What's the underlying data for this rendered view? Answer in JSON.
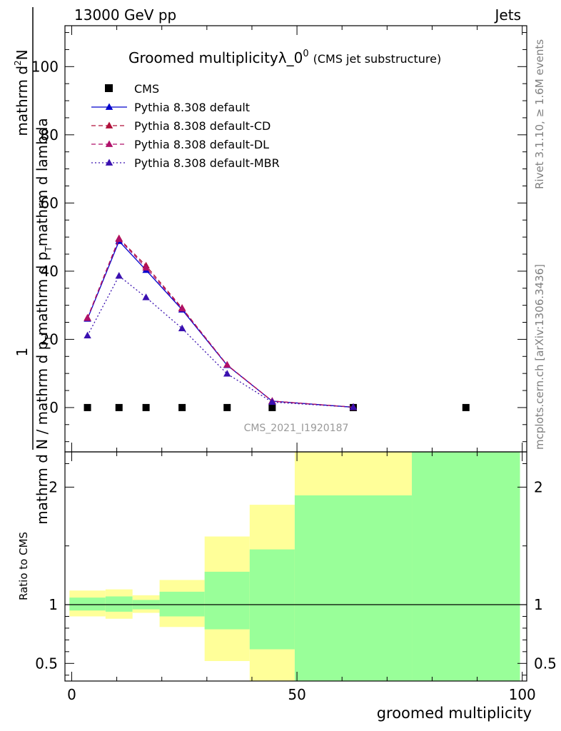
{
  "header": {
    "left": "13000 GeV pp",
    "right": "Jets"
  },
  "side_text": {
    "top": "Rivet 3.1.10, ≥ 1.6M events",
    "bottom": "mcplots.cern.ch [arXiv:1306.3436]"
  },
  "watermark": "CMS_2021_I1920187",
  "chart_data": [
    {
      "type": "line",
      "title": "Groomed multiplicityλ_0",
      "title_sup": "0",
      "subtitle": "(CMS jet substructure)",
      "ylabel_numerator": "1",
      "ylabel_numerator_2": "mathrm d",
      "ylabel_numerator_sup": "2",
      "ylabel_numerator_3": "N",
      "ylabel_denominator": "mathrm d N / mathrm d p",
      "ylabel_denominator_sub": "T",
      "ylabel_denominator_2": "mathrm d p",
      "ylabel_denominator_sub2": "T",
      "ylabel_denominator_3": "mathrm d lambda",
      "xlim": [
        -1.5,
        101
      ],
      "ylim": [
        -13,
        112
      ],
      "yticks": [
        0,
        20,
        40,
        60,
        80,
        100
      ],
      "xticks": [
        0,
        50,
        100
      ],
      "series": [
        {
          "name": "CMS",
          "style": "markers",
          "color": "#000000",
          "x": [
            3.5,
            10.5,
            16.5,
            24.5,
            34.5,
            44.5,
            62.5,
            87.5
          ],
          "y": [
            0,
            0,
            0,
            0,
            0,
            0,
            0,
            0
          ]
        },
        {
          "name": "Pythia 8.308 default",
          "style": "solid",
          "color": "#0000cc",
          "x": [
            3.5,
            10.5,
            16.5,
            24.5,
            34.5,
            44.5,
            62.5
          ],
          "y": [
            26.0,
            48.8,
            40.3,
            28.7,
            12.4,
            1.9,
            0.1
          ]
        },
        {
          "name": "Pythia 8.308 default-CD",
          "style": "dashed",
          "color": "#b0103a",
          "x": [
            3.5,
            10.5,
            16.5,
            24.5,
            34.5,
            44.5,
            62.5
          ],
          "y": [
            26.3,
            49.6,
            41.6,
            29.2,
            12.5,
            1.9,
            0.1
          ]
        },
        {
          "name": "Pythia 8.308 default-DL",
          "style": "dashed",
          "color": "#b0106a",
          "x": [
            3.5,
            10.5,
            16.5,
            24.5,
            34.5,
            44.5,
            62.5
          ],
          "y": [
            26.2,
            49.4,
            41.0,
            29.0,
            12.5,
            1.9,
            0.1
          ]
        },
        {
          "name": "Pythia 8.308 default-MBR",
          "style": "dotted",
          "color": "#3a10b0",
          "x": [
            3.5,
            10.5,
            16.5,
            24.5,
            34.5,
            44.5,
            62.5
          ],
          "y": [
            21.1,
            38.6,
            32.3,
            23.2,
            9.9,
            1.6,
            0.1
          ]
        }
      ]
    },
    {
      "type": "area",
      "ylabel": "Ratio to CMS",
      "xlabel": "groomed multiplicity",
      "xlim": [
        -1.5,
        101
      ],
      "ylim": [
        0.35,
        2.3
      ],
      "yticks": [
        0.5,
        1,
        2
      ],
      "ytick_labels": [
        "0.5",
        "1",
        "2"
      ],
      "xticks": [
        0,
        50,
        100
      ],
      "reference": 1,
      "bands": [
        {
          "x0": -0.5,
          "x1": 7.5,
          "inner": [
            0.95,
            1.06
          ],
          "outer": [
            0.9,
            1.12
          ]
        },
        {
          "x0": 7.5,
          "x1": 13.5,
          "inner": [
            0.94,
            1.07
          ],
          "outer": [
            0.88,
            1.13
          ]
        },
        {
          "x0": 13.5,
          "x1": 19.5,
          "inner": [
            0.96,
            1.04
          ],
          "outer": [
            0.93,
            1.08
          ]
        },
        {
          "x0": 19.5,
          "x1": 29.5,
          "inner": [
            0.9,
            1.11
          ],
          "outer": [
            0.81,
            1.21
          ]
        },
        {
          "x0": 29.5,
          "x1": 39.5,
          "inner": [
            0.79,
            1.28
          ],
          "outer": [
            0.52,
            1.58
          ]
        },
        {
          "x0": 39.5,
          "x1": 49.5,
          "inner": [
            0.62,
            1.47
          ],
          "outer": [
            0.0,
            1.85
          ]
        },
        {
          "x0": 49.5,
          "x1": 75.5,
          "inner": [
            0.0,
            1.93
          ],
          "outer": [
            0.0,
            3.0
          ]
        },
        {
          "x0": 75.5,
          "x1": 99.5,
          "inner": [
            0.0,
            3.0
          ],
          "outer": [
            0.0,
            3.0
          ]
        }
      ],
      "colors": {
        "inner": "#99ff99",
        "outer": "#ffff99"
      }
    }
  ]
}
